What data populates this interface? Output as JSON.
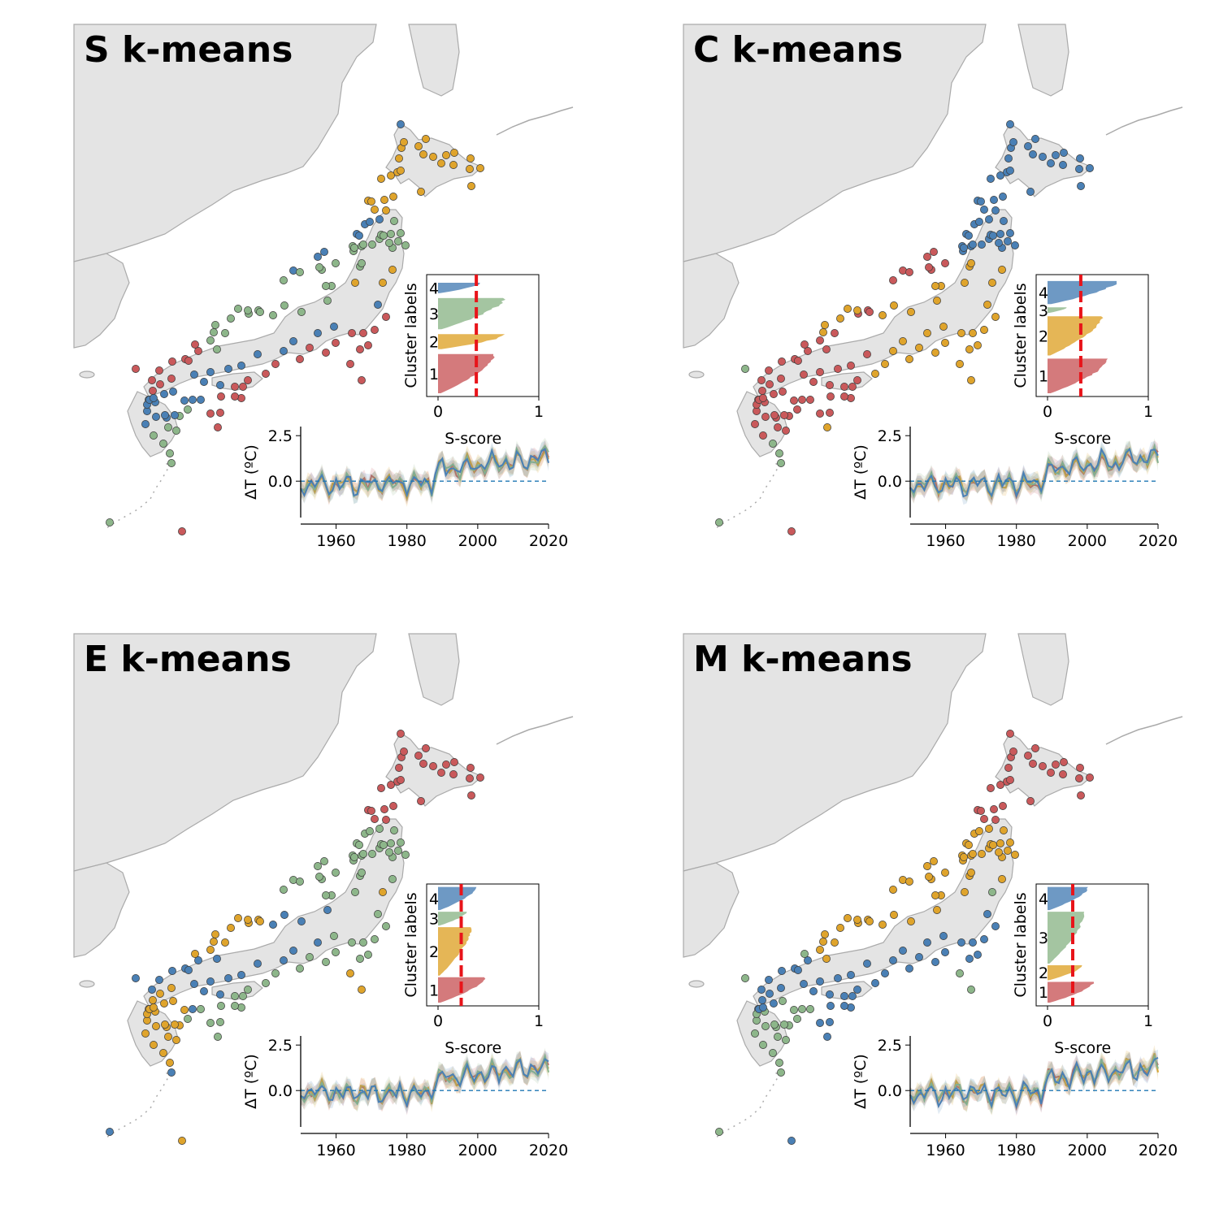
{
  "colors": {
    "cluster1": "#c9595b",
    "cluster2": "#dfa42c",
    "cluster3": "#8db68a",
    "cluster4": "#4a80b5",
    "land": "#e4e4e4",
    "coast": "#aaaaaa",
    "threshold": "#e8141a"
  },
  "chart_data": [
    {
      "type": "scatter",
      "panel": "S k-means",
      "title": "S k-means",
      "silhouette": {
        "type": "bar",
        "ylabel": "Cluster labels",
        "xlabel": "S-score",
        "xlim": [
          0,
          1
        ],
        "xticks": [
          "0",
          "1"
        ],
        "mean_s_score": 0.38,
        "clusters": [
          {
            "label": "1",
            "max_score": 0.58,
            "share": 0.34
          },
          {
            "label": "2",
            "max_score": 0.7,
            "share": 0.13
          },
          {
            "label": "3",
            "max_score": 0.68,
            "share": 0.27
          },
          {
            "label": "4",
            "max_score": 0.44,
            "share": 0.09
          }
        ]
      },
      "timeseries": {
        "type": "line",
        "ylabel": "ΔT (ºC)",
        "xlim": [
          1950,
          2020
        ],
        "ylim": [
          -2,
          3
        ],
        "xticks": [
          "1960",
          "1980",
          "2000",
          "2020"
        ],
        "yticks": [
          "0.0",
          "2.5"
        ],
        "reference_line": 0,
        "end_values": [
          1.3,
          1.2,
          1.6,
          1.0
        ]
      }
    },
    {
      "type": "scatter",
      "panel": "C k-means",
      "title": "C k-means",
      "silhouette": {
        "type": "bar",
        "ylabel": "Cluster labels",
        "xlabel": "S-score",
        "xlim": [
          0,
          1
        ],
        "xticks": [
          "0",
          "1"
        ],
        "mean_s_score": 0.33,
        "clusters": [
          {
            "label": "1",
            "max_score": 0.63,
            "share": 0.3
          },
          {
            "label": "2",
            "max_score": 0.56,
            "share": 0.34
          },
          {
            "label": "3",
            "max_score": 0.2,
            "share": 0.05
          },
          {
            "label": "4",
            "max_score": 0.72,
            "share": 0.2
          }
        ]
      },
      "timeseries": {
        "type": "line",
        "ylabel": "ΔT (ºC)",
        "xlim": [
          1950,
          2020
        ],
        "ylim": [
          -2,
          3
        ],
        "xticks": [
          "1960",
          "1980",
          "2000",
          "2020"
        ],
        "yticks": [
          "0.0",
          "2.5"
        ],
        "reference_line": 0,
        "end_values": [
          1.6,
          1.3,
          1.0,
          1.4
        ]
      }
    },
    {
      "type": "scatter",
      "panel": "E k-means",
      "title": "E k-means",
      "silhouette": {
        "type": "bar",
        "ylabel": "Cluster labels",
        "xlabel": "S-score",
        "xlim": [
          0,
          1
        ],
        "xticks": [
          "0",
          "1"
        ],
        "mean_s_score": 0.23,
        "clusters": [
          {
            "label": "1",
            "max_score": 0.48,
            "share": 0.22
          },
          {
            "label": "2",
            "max_score": 0.34,
            "share": 0.42
          },
          {
            "label": "3",
            "max_score": 0.3,
            "share": 0.12
          },
          {
            "label": "4",
            "max_score": 0.4,
            "share": 0.2
          }
        ]
      },
      "timeseries": {
        "type": "line",
        "ylabel": "ΔT (ºC)",
        "xlim": [
          1950,
          2020
        ],
        "ylim": [
          -2,
          3
        ],
        "xticks": [
          "1960",
          "1980",
          "2000",
          "2020"
        ],
        "yticks": [
          "0.0",
          "2.5"
        ],
        "reference_line": 0,
        "end_values": [
          1.4,
          1.2,
          1.0,
          1.6
        ]
      }
    },
    {
      "type": "scatter",
      "panel": "M k-means",
      "title": "M k-means",
      "silhouette": {
        "type": "bar",
        "ylabel": "Cluster labels",
        "xlabel": "S-score",
        "xlim": [
          0,
          1
        ],
        "xticks": [
          "0",
          "1"
        ],
        "mean_s_score": 0.25,
        "clusters": [
          {
            "label": "1",
            "max_score": 0.48,
            "share": 0.18
          },
          {
            "label": "2",
            "max_score": 0.36,
            "share": 0.13
          },
          {
            "label": "3",
            "max_score": 0.38,
            "share": 0.45
          },
          {
            "label": "4",
            "max_score": 0.42,
            "share": 0.2
          }
        ]
      },
      "timeseries": {
        "type": "line",
        "ylabel": "ΔT (ºC)",
        "xlim": [
          1950,
          2020
        ],
        "ylim": [
          -2,
          3
        ],
        "xticks": [
          "1960",
          "1980",
          "2000",
          "2020"
        ],
        "yticks": [
          "0.0",
          "2.5"
        ],
        "reference_line": 0,
        "end_values": [
          1.4,
          1.0,
          1.2,
          1.8
        ]
      }
    }
  ]
}
